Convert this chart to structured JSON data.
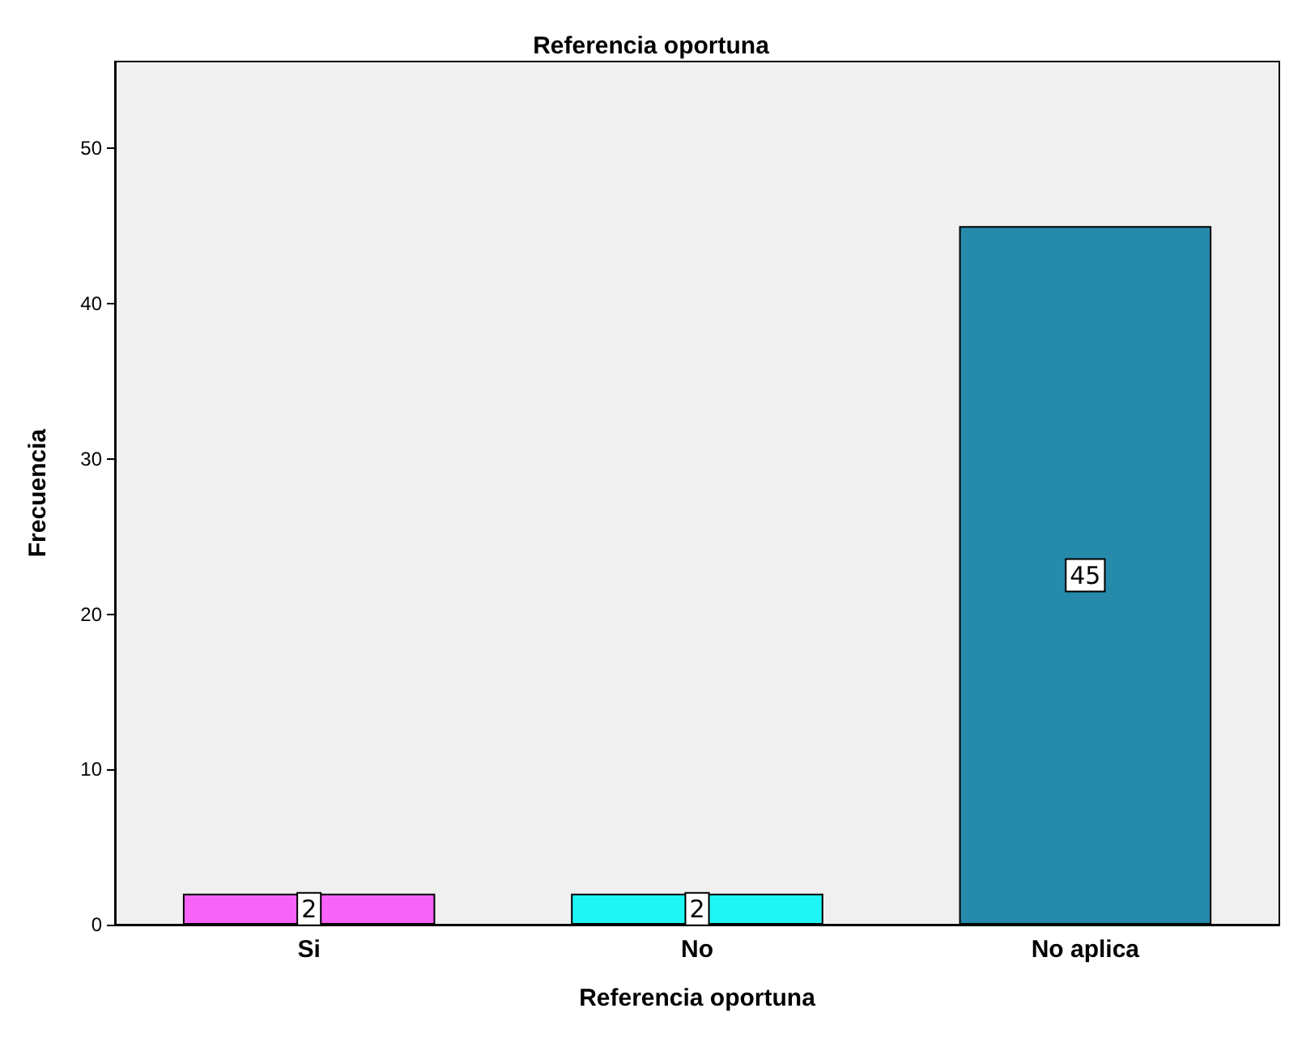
{
  "chart_data": {
    "type": "bar",
    "title": "Referencia oportuna",
    "xlabel": "Referencia oportuna",
    "ylabel": "Frecuencia",
    "categories": [
      "Si",
      "No",
      "No aplica"
    ],
    "values": [
      2,
      2,
      45
    ],
    "colors": [
      "#f763f7",
      "#1ff5f5",
      "#268aab"
    ],
    "ylim": [
      0,
      55.6
    ],
    "yticks": [
      0,
      10,
      20,
      30,
      40,
      50
    ],
    "grid": false,
    "data_labels": true
  }
}
